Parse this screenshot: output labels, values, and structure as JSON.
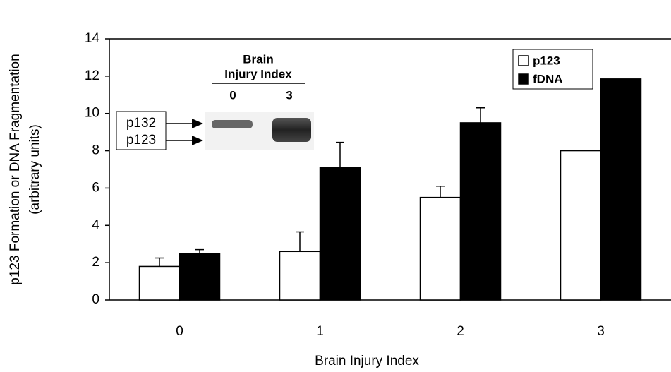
{
  "chart_data": {
    "type": "bar",
    "xlabel": "Brain Injury Index",
    "ylabel": "p123 Formation or DNA Fragmentation",
    "ylabel_units": "(arbitrary units)",
    "categories": [
      "0",
      "1",
      "2",
      "3"
    ],
    "series": [
      {
        "name": "p123",
        "color": "#ffffff",
        "values": [
          1.8,
          2.6,
          5.5,
          8.0
        ],
        "errors": [
          0.45,
          1.05,
          0.6,
          null
        ]
      },
      {
        "name": "fDNA",
        "color": "#000000",
        "values": [
          2.5,
          7.1,
          9.5,
          11.85
        ],
        "errors": [
          0.2,
          1.35,
          0.8,
          null
        ]
      }
    ],
    "ylim": [
      0,
      14
    ],
    "yticks": [
      0,
      2,
      4,
      6,
      8,
      10,
      12,
      14
    ],
    "grid": false,
    "legend": "upper right",
    "inset": {
      "title_lines": [
        "Brain",
        "Injury Index"
      ],
      "lanes": [
        "0",
        "3"
      ],
      "bands": [
        "p132",
        "p123"
      ]
    }
  }
}
